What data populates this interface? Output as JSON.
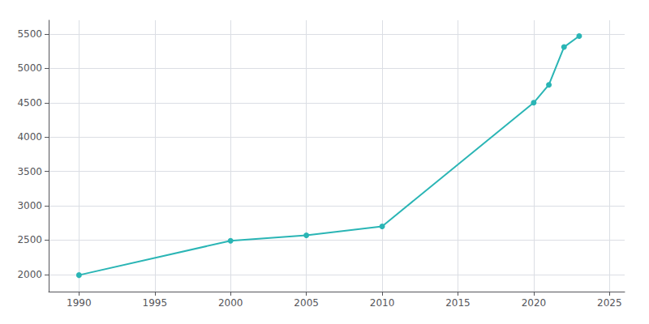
{
  "chart_data": {
    "type": "line",
    "x": [
      1990,
      2000,
      2005,
      2010,
      2020,
      2021,
      2022,
      2023
    ],
    "values": [
      1990,
      2490,
      2570,
      2700,
      4500,
      4760,
      5310,
      5470
    ],
    "color": "#2ab5b5",
    "marker": "circle",
    "xlim": [
      1988,
      2026
    ],
    "ylim": [
      1750,
      5700
    ],
    "xticks": [
      1990,
      1995,
      2000,
      2005,
      2010,
      2015,
      2020,
      2025
    ],
    "yticks": [
      2000,
      2500,
      3000,
      3500,
      4000,
      4500,
      5000,
      5500
    ],
    "grid": true
  }
}
